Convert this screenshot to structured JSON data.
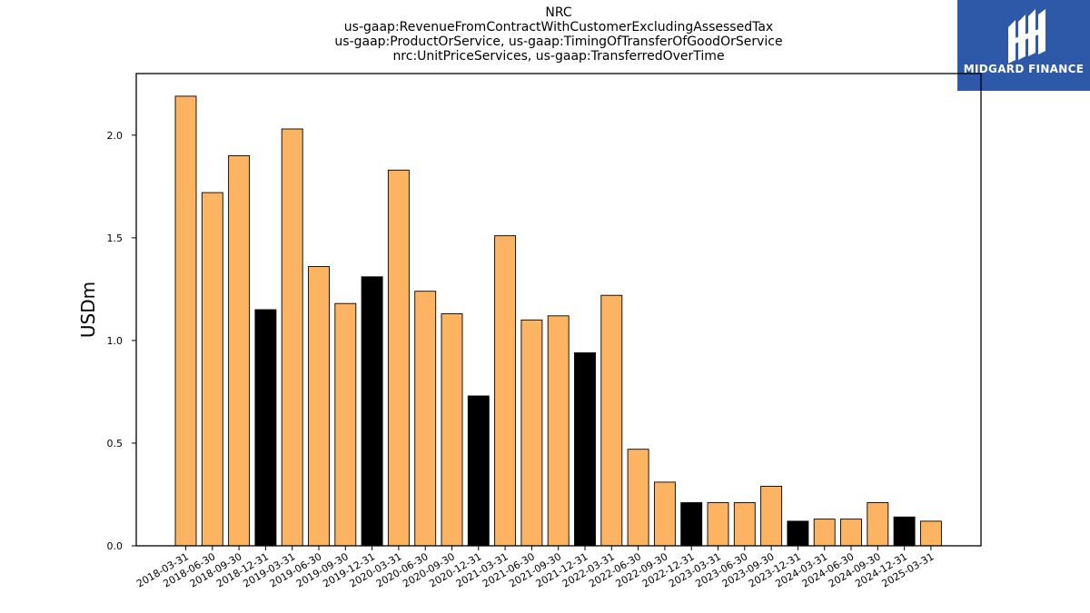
{
  "chart_data": {
    "type": "bar",
    "title_lines": [
      "NRC",
      "us-gaap:RevenueFromContractWithCustomerExcludingAssessedTax",
      "us-gaap:ProductOrService, us-gaap:TimingOfTransferOfGoodOrService",
      "nrc:UnitPriceServices, us-gaap:TransferredOverTime"
    ],
    "xlabel": "",
    "ylabel": "USDm",
    "ylim": [
      0,
      2.3
    ],
    "yticks": [
      0.0,
      0.5,
      1.0,
      1.5,
      2.0
    ],
    "ytick_labels": [
      "0.0",
      "0.5",
      "1.0",
      "1.5",
      "2.0"
    ],
    "categories": [
      "2018-03-31",
      "2018-06-30",
      "2018-09-30",
      "2018-12-31",
      "2019-03-31",
      "2019-06-30",
      "2019-09-30",
      "2019-12-31",
      "2020-03-31",
      "2020-06-30",
      "2020-09-30",
      "2020-12-31",
      "2021-03-31",
      "2021-06-30",
      "2021-09-30",
      "2021-12-31",
      "2022-03-31",
      "2022-06-30",
      "2022-09-30",
      "2022-12-31",
      "2023-03-31",
      "2023-06-30",
      "2023-09-30",
      "2023-12-31",
      "2024-03-31",
      "2024-06-30",
      "2024-09-30",
      "2024-12-31",
      "2025-03-31"
    ],
    "values": [
      2.19,
      1.72,
      1.9,
      1.15,
      2.03,
      1.36,
      1.18,
      1.31,
      1.83,
      1.24,
      1.13,
      0.73,
      1.51,
      1.1,
      1.12,
      0.94,
      1.22,
      0.47,
      0.31,
      0.21,
      0.21,
      0.21,
      0.29,
      0.12,
      0.13,
      0.13,
      0.21,
      0.14,
      0.12
    ],
    "highlight": [
      false,
      false,
      false,
      true,
      false,
      false,
      false,
      true,
      false,
      false,
      false,
      true,
      false,
      false,
      false,
      true,
      false,
      false,
      false,
      true,
      false,
      false,
      false,
      true,
      false,
      false,
      false,
      true,
      false
    ],
    "colors": {
      "default": "#fdb462",
      "highlight": "#000000",
      "edge": "#000000"
    },
    "grid": false,
    "legend": "none"
  },
  "logo": {
    "text": "MIDGARD FINANCE",
    "background": "#2d59a8"
  }
}
